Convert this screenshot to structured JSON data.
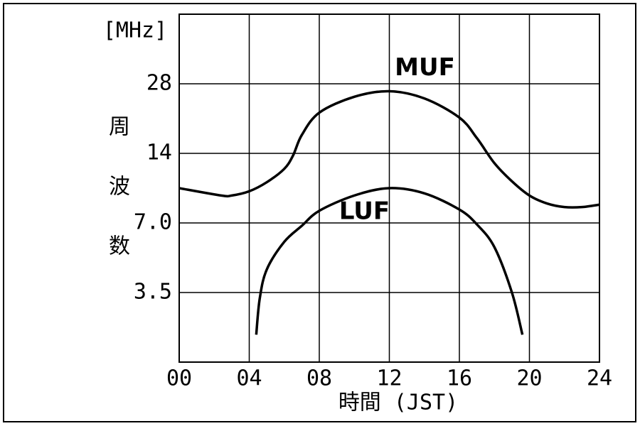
{
  "chart_data": {
    "type": "line",
    "y_label_top": "[MHz]",
    "y_label": "周波数",
    "x_label": "時間 (JST)",
    "log_y": true,
    "grid": true,
    "xlim": [
      0,
      24
    ],
    "xticks": [
      {
        "value": 0,
        "label": "00"
      },
      {
        "value": 4,
        "label": "04"
      },
      {
        "value": 8,
        "label": "08"
      },
      12,
      16,
      20,
      24
    ],
    "ylim": [
      1.75,
      56
    ],
    "yticks": [
      3.5,
      {
        "value": 7,
        "label": "7.0"
      },
      14,
      28
    ],
    "series": [
      {
        "name": "MUF",
        "color": "#000000",
        "x": [
          0,
          2.4,
          3,
          4,
          5,
          6,
          6.5,
          7,
          8,
          10,
          12,
          14,
          16,
          17,
          18,
          19,
          20,
          21,
          22,
          23,
          24
        ],
        "values": [
          9.9,
          9.2,
          9.2,
          9.6,
          10.5,
          12.0,
          13.7,
          16.8,
          21.0,
          24.6,
          26,
          24.2,
          20.0,
          16.3,
          12.7,
          10.6,
          9.2,
          8.5,
          8.2,
          8.2,
          8.4
        ]
      },
      {
        "name": "LUF",
        "color": "#000000",
        "x": [
          4.4,
          4.6,
          5,
          6,
          7,
          8,
          10,
          12,
          14,
          16,
          17,
          18,
          19,
          19.6
        ],
        "values": [
          2.3,
          3.3,
          4.4,
          5.8,
          6.8,
          7.9,
          9.2,
          9.9,
          9.4,
          8.0,
          6.9,
          5.5,
          3.5,
          2.3
        ]
      }
    ]
  }
}
